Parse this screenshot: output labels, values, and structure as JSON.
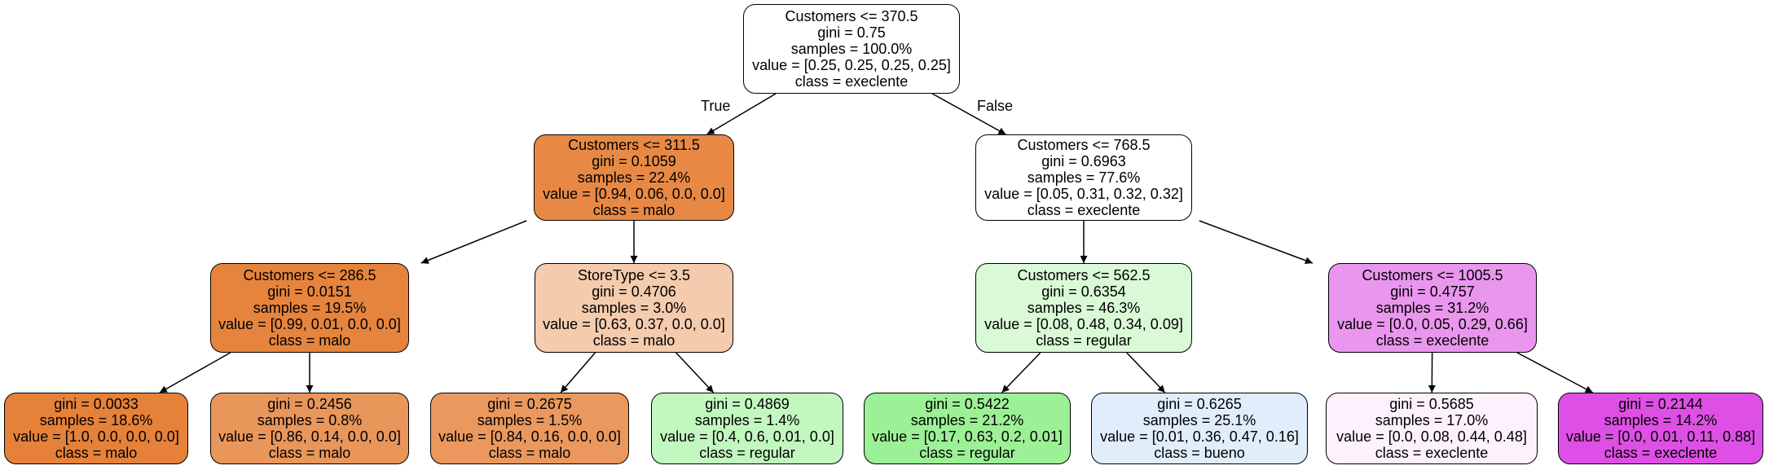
{
  "tree": {
    "edge_true_label": "True",
    "edge_false_label": "False",
    "nodes": [
      {
        "id": "root",
        "color": "#ffffff",
        "lines": [
          "Customers <= 370.5",
          "gini = 0.75",
          "samples = 100.0%",
          "value = [0.25, 0.25, 0.25, 0.25]",
          "class = execlente"
        ]
      },
      {
        "id": "n1",
        "color": "#e78945",
        "lines": [
          "Customers <= 311.5",
          "gini = 0.1059",
          "samples = 22.4%",
          "value = [0.94, 0.06, 0.0, 0.0]",
          "class = malo"
        ]
      },
      {
        "id": "n2",
        "color": "#ffffff",
        "lines": [
          "Customers <= 768.5",
          "gini = 0.6963",
          "samples = 77.6%",
          "value = [0.05, 0.31, 0.32, 0.32]",
          "class = execlente"
        ]
      },
      {
        "id": "n3",
        "color": "#e6843d",
        "lines": [
          "Customers <= 286.5",
          "gini = 0.0151",
          "samples = 19.5%",
          "value = [0.99, 0.01, 0.0, 0.0]",
          "class = malo"
        ]
      },
      {
        "id": "n4",
        "color": "#f5cbad",
        "lines": [
          "StoreType <= 3.5",
          "gini = 0.4706",
          "samples = 3.0%",
          "value = [0.63, 0.37, 0.0, 0.0]",
          "class = malo"
        ]
      },
      {
        "id": "n5",
        "color": "#d9f9d7",
        "lines": [
          "Customers <= 562.5",
          "gini = 0.6354",
          "samples = 46.3%",
          "value = [0.08, 0.48, 0.34, 0.09]",
          "class = regular"
        ]
      },
      {
        "id": "n6",
        "color": "#ea96ee",
        "lines": [
          "Customers <= 1005.5",
          "gini = 0.4757",
          "samples = 31.2%",
          "value = [0.0, 0.05, 0.29, 0.66]",
          "class = execlente"
        ]
      },
      {
        "id": "l1",
        "color": "#e58139",
        "lines": [
          "gini = 0.0033",
          "samples = 18.6%",
          "value = [1.0, 0.0, 0.0, 0.0]",
          "class = malo"
        ]
      },
      {
        "id": "l2",
        "color": "#e9965b",
        "lines": [
          "gini = 0.2456",
          "samples = 0.8%",
          "value = [0.86, 0.14, 0.0, 0.0]",
          "class = malo"
        ]
      },
      {
        "id": "l3",
        "color": "#ea985e",
        "lines": [
          "gini = 0.2675",
          "samples = 1.5%",
          "value = [0.84, 0.16, 0.0, 0.0]",
          "class = malo"
        ]
      },
      {
        "id": "l4",
        "color": "#c3f7c0",
        "lines": [
          "gini = 0.4869",
          "samples = 1.4%",
          "value = [0.4, 0.6, 0.01, 0.0]",
          "class = regular"
        ]
      },
      {
        "id": "l5",
        "color": "#9cf197",
        "lines": [
          "gini = 0.5422",
          "samples = 21.2%",
          "value = [0.17, 0.63, 0.2, 0.01]",
          "class = regular"
        ]
      },
      {
        "id": "l6",
        "color": "#e0edfa",
        "lines": [
          "gini = 0.6265",
          "samples = 25.1%",
          "value = [0.01, 0.36, 0.47, 0.16]",
          "class = bueno"
        ]
      },
      {
        "id": "l7",
        "color": "#fcf1fd",
        "lines": [
          "gini = 0.5685",
          "samples = 17.0%",
          "value = [0.0, 0.08, 0.44, 0.48]",
          "class = execlente"
        ]
      },
      {
        "id": "l8",
        "color": "#de50e5",
        "lines": [
          "gini = 0.2144",
          "samples = 14.2%",
          "value = [0.0, 0.01, 0.11, 0.88]",
          "class = execlente"
        ]
      }
    ],
    "edges": [
      [
        "root",
        "n1"
      ],
      [
        "root",
        "n2"
      ],
      [
        "n1",
        "n3"
      ],
      [
        "n1",
        "n4"
      ],
      [
        "n2",
        "n5"
      ],
      [
        "n2",
        "n6"
      ],
      [
        "n3",
        "l1"
      ],
      [
        "n3",
        "l2"
      ],
      [
        "n4",
        "l3"
      ],
      [
        "n4",
        "l4"
      ],
      [
        "n5",
        "l5"
      ],
      [
        "n5",
        "l6"
      ],
      [
        "n6",
        "l7"
      ],
      [
        "n6",
        "l8"
      ]
    ]
  }
}
